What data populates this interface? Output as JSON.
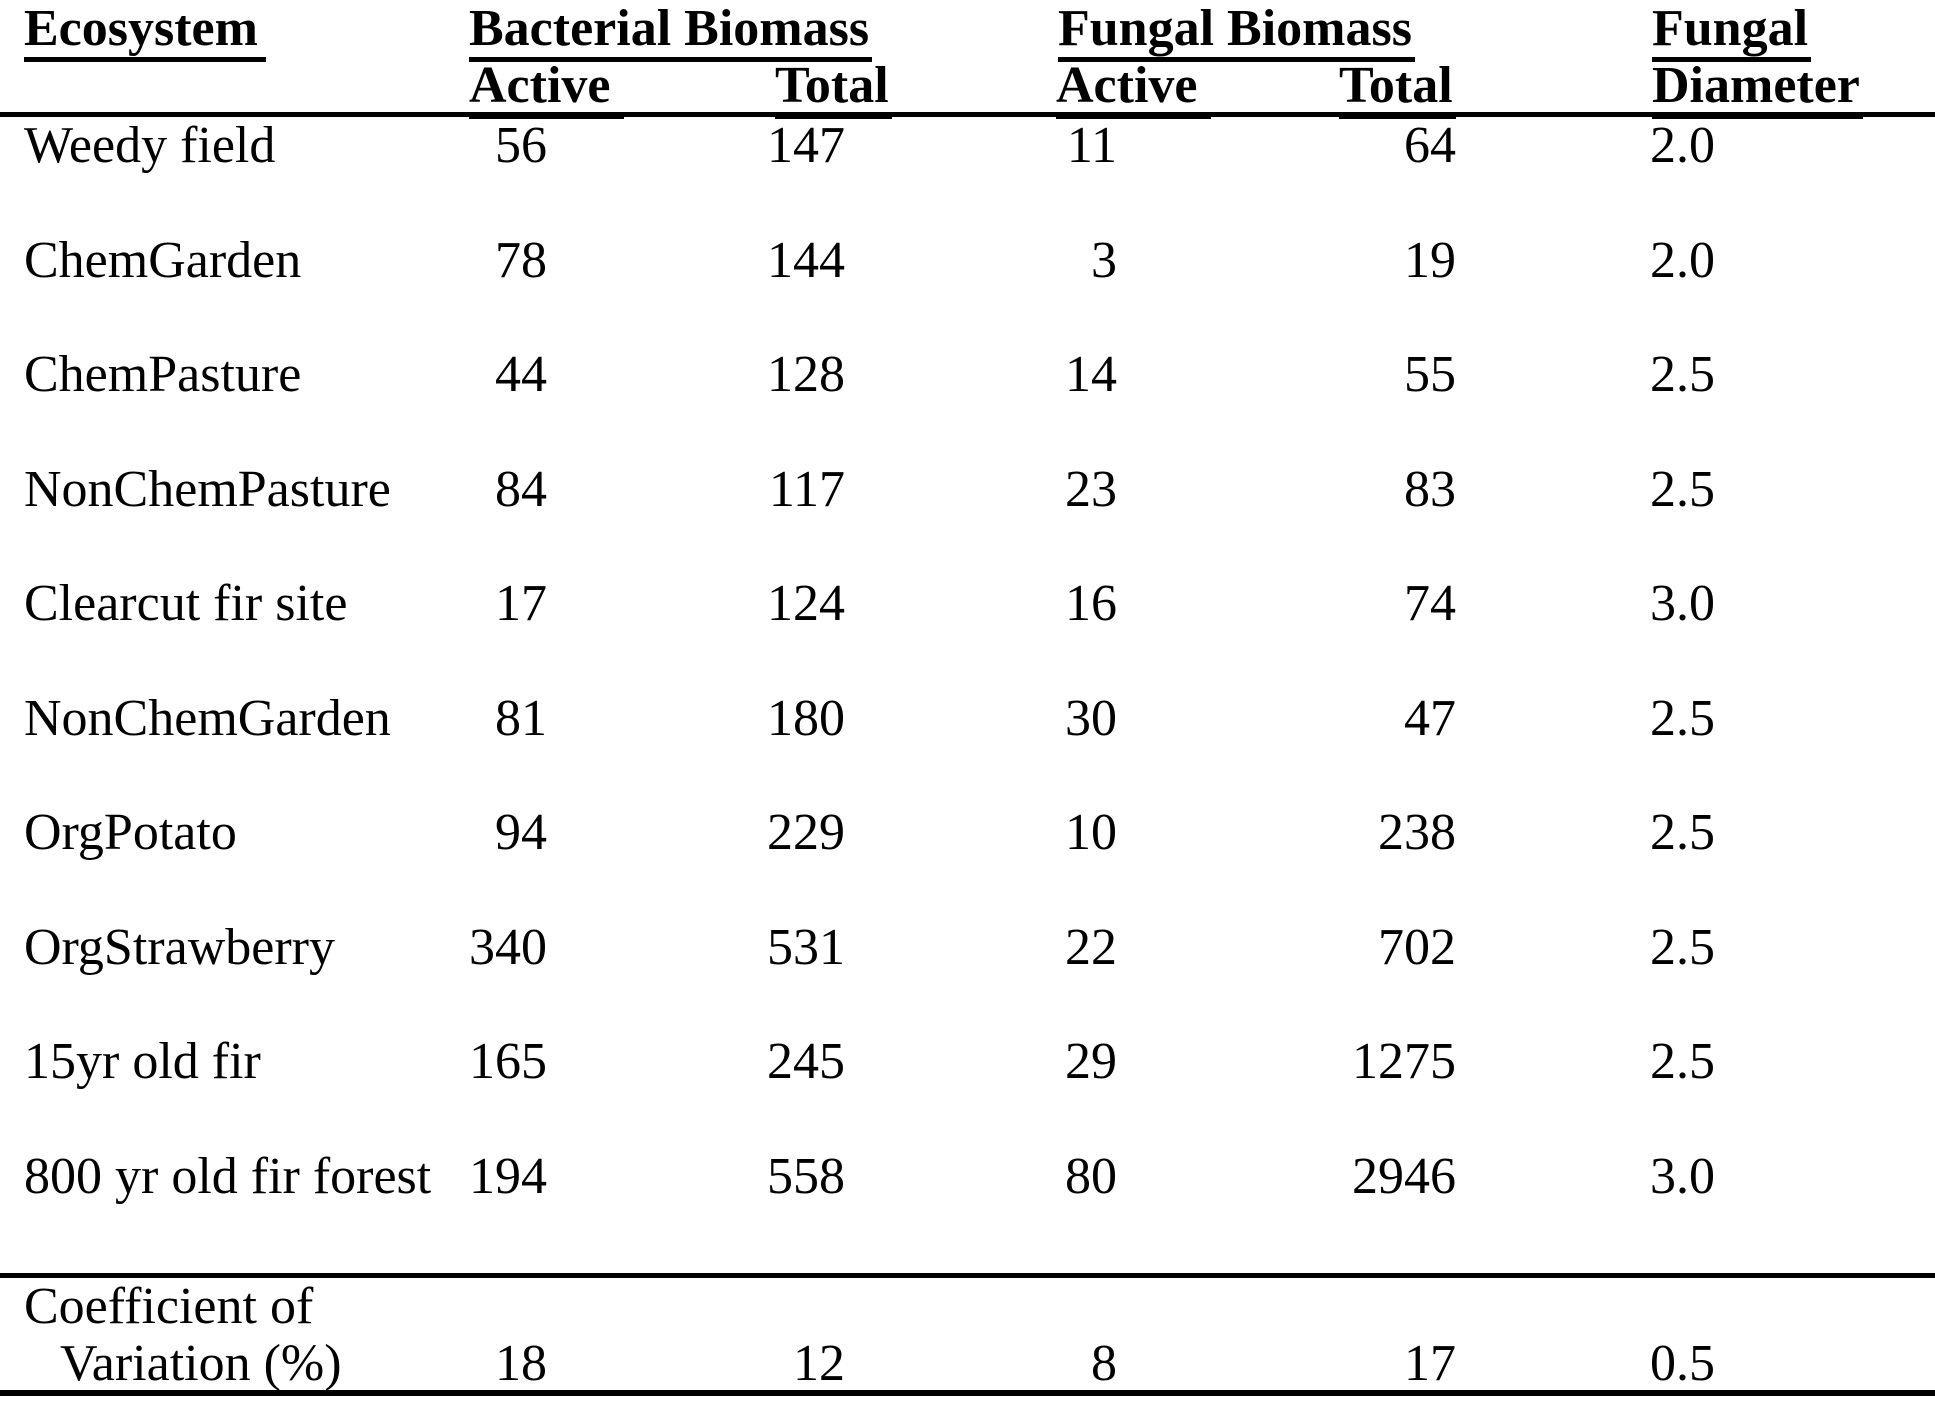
{
  "page": {
    "background_color": "#ffffff",
    "text_color": "#000000"
  },
  "table": {
    "header": {
      "ecosystem": "Ecosystem",
      "bacterial_biomass_group": "Bacterial Biomass",
      "fungal_biomass_group": "Fungal Biomass",
      "fungal_diameter_line1": "Fungal",
      "fungal_diameter_line2": "Diameter",
      "bacterial_active": "Active",
      "bacterial_total": "Total",
      "fungal_active": "Active",
      "fungal_total": "Total"
    },
    "rows": [
      {
        "ecosystem": "Weedy field",
        "bacterial_active": "56",
        "bacterial_total": "147",
        "fungal_active": "11",
        "fungal_total": "64",
        "fungal_diameter": "2.0"
      },
      {
        "ecosystem": "ChemGarden",
        "bacterial_active": "78",
        "bacterial_total": "144",
        "fungal_active": "3",
        "fungal_total": "19",
        "fungal_diameter": "2.0"
      },
      {
        "ecosystem": "ChemPasture",
        "bacterial_active": "44",
        "bacterial_total": "128",
        "fungal_active": "14",
        "fungal_total": "55",
        "fungal_diameter": "2.5"
      },
      {
        "ecosystem": "NonChemPasture",
        "bacterial_active": "84",
        "bacterial_total": "117",
        "fungal_active": "23",
        "fungal_total": "83",
        "fungal_diameter": "2.5"
      },
      {
        "ecosystem": "Clearcut fir site",
        "bacterial_active": "17",
        "bacterial_total": "124",
        "fungal_active": "16",
        "fungal_total": "74",
        "fungal_diameter": "3.0"
      },
      {
        "ecosystem": "NonChemGarden",
        "bacterial_active": "81",
        "bacterial_total": "180",
        "fungal_active": "30",
        "fungal_total": "47",
        "fungal_diameter": "2.5"
      },
      {
        "ecosystem": "OrgPotato",
        "bacterial_active": "94",
        "bacterial_total": "229",
        "fungal_active": "10",
        "fungal_total": "238",
        "fungal_diameter": "2.5"
      },
      {
        "ecosystem": "OrgStrawberry",
        "bacterial_active": "340",
        "bacterial_total": "531",
        "fungal_active": "22",
        "fungal_total": "702",
        "fungal_diameter": "2.5"
      },
      {
        "ecosystem": "15yr old fir",
        "bacterial_active": "165",
        "bacterial_total": "245",
        "fungal_active": "29",
        "fungal_total": "1275",
        "fungal_diameter": "2.5"
      },
      {
        "ecosystem": "800 yr old fir forest",
        "bacterial_active": "194",
        "bacterial_total": "558",
        "fungal_active": "80",
        "fungal_total": "2946",
        "fungal_diameter": "3.0"
      }
    ],
    "footer": {
      "label_line1": "Coefficient of",
      "label_line2": "Variation (%)",
      "bacterial_active": "18",
      "bacterial_total": "12",
      "fungal_active": "8",
      "fungal_total": "17",
      "fungal_diameter": "0.5"
    }
  }
}
